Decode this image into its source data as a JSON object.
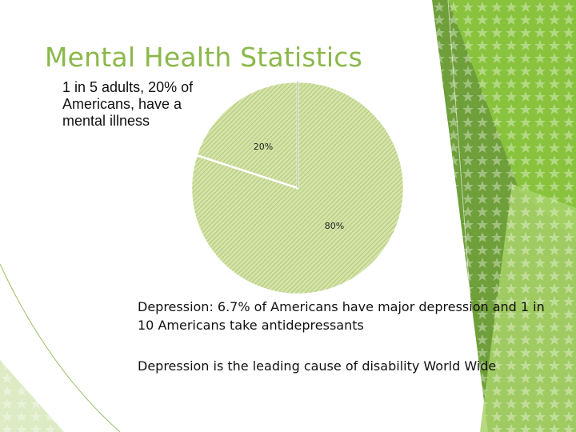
{
  "slide": {
    "title": "Mental Health Statistics",
    "intro": "1 in 5 adults, 20% of Americans, have a mental illness",
    "paragraph_1": "Depression: 6.7% of Americans have major depression and 1 in 10 Americans take antidepressants",
    "paragraph_2": "Depression is the leading cause of disability World Wide"
  },
  "colors": {
    "title": "#8bb84a",
    "pie_fill": "#d4e4a6",
    "pie_hatch": "#a8c07a",
    "pie_edge": "#7f9a55",
    "slice_label": "#222222",
    "accent_green": "#8cc63f"
  },
  "chart_data": {
    "type": "pie",
    "title": "",
    "labels": [
      "20%",
      "80%"
    ],
    "values": [
      20,
      80
    ],
    "start_angle_deg": -90,
    "direction": "clockwise",
    "order": [
      1,
      0
    ],
    "legend": "none"
  }
}
